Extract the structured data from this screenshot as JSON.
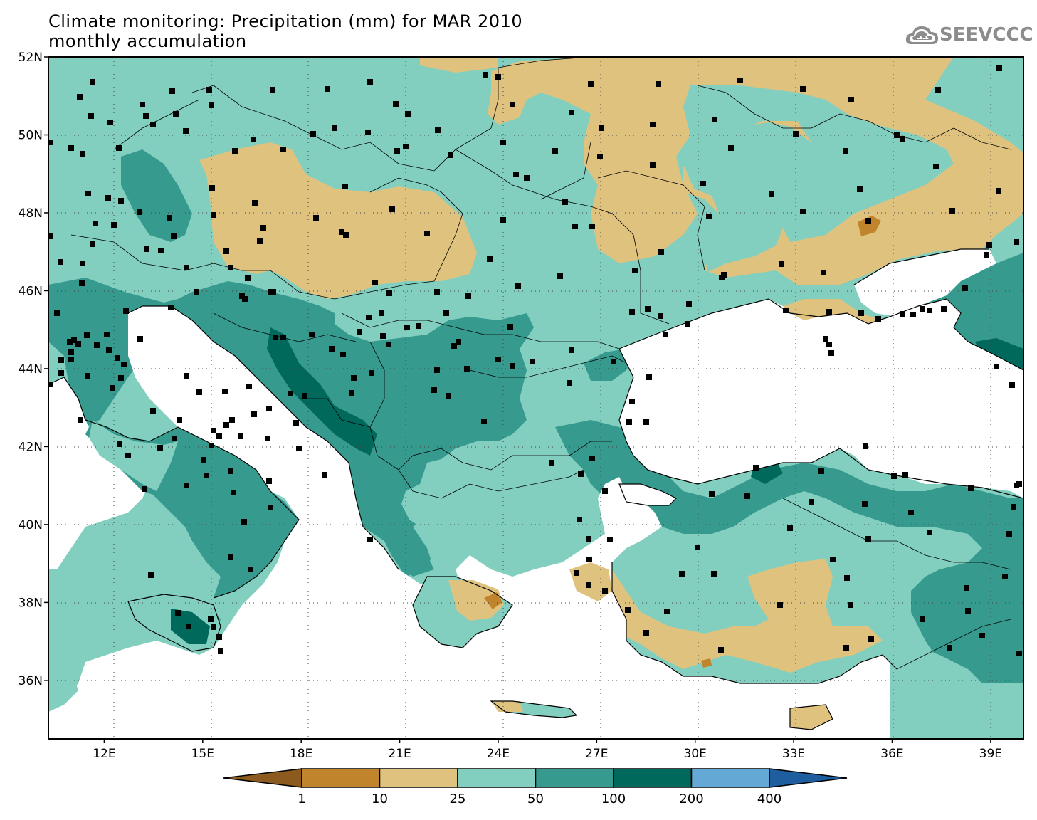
{
  "header": {
    "title_line1": "Climate monitoring: Precipitation (mm) for MAR 2010",
    "title_line2": "monthly accumulation"
  },
  "logo": {
    "text": "SEEVCCC",
    "icon": "cloud-logo-icon"
  },
  "map": {
    "lon_range": [
      10.3,
      40.0
    ],
    "lat_range": [
      34.5,
      52.0
    ],
    "lat_labels": [
      "52N",
      "50N",
      "48N",
      "46N",
      "44N",
      "42N",
      "40N",
      "38N",
      "36N"
    ],
    "lat_values": [
      52,
      50,
      48,
      46,
      44,
      42,
      40,
      38,
      36
    ],
    "lon_labels": [
      "12E",
      "15E",
      "18E",
      "21E",
      "24E",
      "27E",
      "30E",
      "33E",
      "36E",
      "39E"
    ],
    "lon_values": [
      12,
      15,
      18,
      21,
      24,
      27,
      30,
      33,
      36,
      39
    ],
    "colors": {
      "sea": "#ffffff",
      "base_class": "#82cfc0"
    }
  },
  "legend": {
    "labels": [
      "1",
      "10",
      "25",
      "50",
      "100",
      "200",
      "400"
    ],
    "colors": [
      "#8c5a1e",
      "#c0842c",
      "#e0c27f",
      "#82cfc0",
      "#369a8e",
      "#00695c",
      "#64a9d6",
      "#1e5e9e"
    ]
  }
}
